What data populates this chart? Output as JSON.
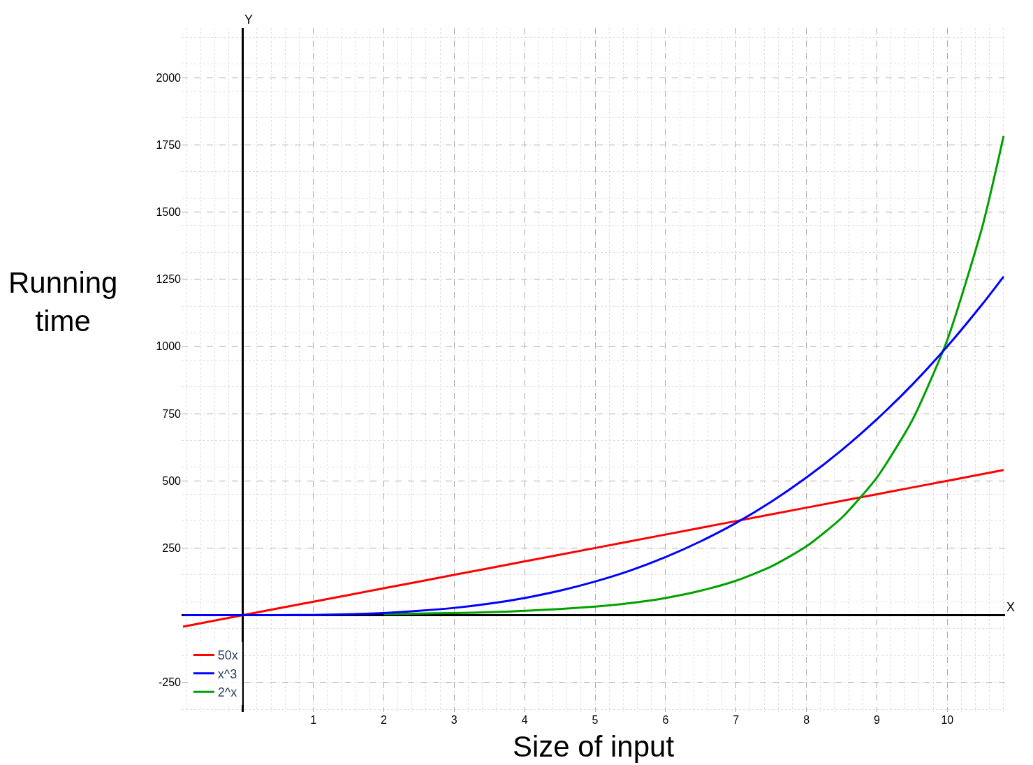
{
  "chart_data": {
    "type": "line",
    "xlabel": "Size of input",
    "ylabel": "Running time",
    "annotations": [
      "X",
      "Y"
    ],
    "xlim": [
      -0.87,
      10.82
    ],
    "ylim": [
      -360,
      2185
    ],
    "xticks": [
      1,
      2,
      3,
      4,
      5,
      6,
      7,
      8,
      9,
      10
    ],
    "yticks": [
      -250,
      250,
      500,
      750,
      1000,
      1250,
      1500,
      1750,
      2000
    ],
    "grid": true,
    "legend": "bottom left",
    "marker": "none",
    "line_style": "solid",
    "series": [
      {
        "name": "50x",
        "color": "#ff0000",
        "x": [
          -0.85,
          0,
          1,
          2,
          3,
          4,
          5,
          6,
          7,
          8,
          9,
          10,
          10.8
        ],
        "values": [
          -43,
          0,
          50,
          100,
          150,
          200,
          250,
          300,
          350,
          400,
          450,
          500,
          540
        ]
      },
      {
        "name": "x^3",
        "color": "#0000ff",
        "x": [
          -0.85,
          0,
          0.5,
          1,
          1.5,
          2,
          2.5,
          3,
          3.5,
          4,
          4.5,
          5,
          5.5,
          6,
          6.5,
          7,
          7.5,
          8,
          8.5,
          9,
          9.5,
          10,
          10.5,
          10.8
        ],
        "values": [
          0,
          0,
          0,
          1,
          3,
          8,
          16,
          27,
          43,
          64,
          91,
          125,
          166,
          216,
          275,
          343,
          422,
          512,
          614,
          729,
          857,
          1000,
          1158,
          1260
        ]
      },
      {
        "name": "2^x",
        "color": "#00a000",
        "x": [
          2,
          2.5,
          3,
          3.5,
          4,
          4.5,
          5,
          5.5,
          6,
          6.5,
          7,
          7.5,
          8,
          8.5,
          9,
          9.5,
          10,
          10.5,
          10.8
        ],
        "values": [
          4,
          6,
          8,
          11,
          16,
          23,
          32,
          45,
          64,
          91,
          128,
          181,
          256,
          362,
          512,
          724,
          1024,
          1448,
          1783
        ]
      }
    ]
  }
}
